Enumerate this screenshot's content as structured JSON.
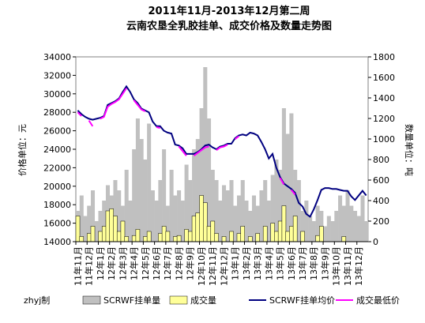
{
  "chart_data": {
    "type": "combo",
    "title": "2011年11月-2013年12月第二周",
    "subtitle": "云南农垦全乳胶挂单、成交价格及数量走势图",
    "y_label": "价格单位：元",
    "y2_label": "数量单位：吨",
    "credit": "zhyj制",
    "categories": [
      "11年11月",
      null,
      null,
      "11年12月",
      null,
      null,
      "12年1月",
      null,
      null,
      "12年2月",
      null,
      null,
      "12年3月",
      null,
      null,
      "12年4月",
      null,
      null,
      "12年5月",
      null,
      null,
      "12年6月",
      null,
      null,
      "12年7月",
      null,
      null,
      "12年8月",
      null,
      null,
      "12年9月",
      null,
      null,
      "12年10月",
      null,
      null,
      "12年11月",
      null,
      null,
      "12年12月",
      null,
      null,
      "13年1月",
      null,
      null,
      "13年2月",
      null,
      null,
      "13年3月",
      null,
      null,
      "13年4月",
      null,
      null,
      "13年5月",
      null,
      null,
      "13年6月",
      null,
      null,
      "13年7月",
      null,
      null,
      "13年8月",
      null,
      null,
      "13年9月",
      null,
      null,
      "13年10月",
      null,
      null,
      "13年11月",
      null,
      null,
      "13年12月",
      null,
      null
    ],
    "ylim": [
      14000,
      34000
    ],
    "yticks": [
      14000,
      16000,
      18000,
      20000,
      22000,
      24000,
      26000,
      28000,
      30000,
      32000,
      34000
    ],
    "y2lim": [
      0,
      1800
    ],
    "y2ticks": [
      0,
      200,
      400,
      600,
      800,
      1000,
      1200,
      1400,
      1600,
      1800
    ],
    "series": [
      {
        "name": "SCRWF挂单量",
        "kind": "bar",
        "axis": "y2",
        "color": "#c0c0c0",
        "values": [
          300,
          450,
          250,
          350,
          500,
          200,
          300,
          400,
          550,
          450,
          600,
          500,
          350,
          700,
          400,
          900,
          1200,
          1000,
          800,
          1150,
          500,
          400,
          600,
          900,
          350,
          700,
          450,
          500,
          400,
          750,
          600,
          900,
          1000,
          1300,
          1700,
          1200,
          700,
          600,
          400,
          550,
          500,
          600,
          350,
          450,
          600,
          400,
          300,
          450,
          350,
          500,
          600,
          400,
          650,
          800,
          700,
          1300,
          1050,
          1250,
          700,
          600,
          300,
          400,
          250,
          200,
          350,
          300,
          150,
          250,
          200,
          300,
          450,
          350,
          500,
          350,
          300,
          250,
          450,
          200
        ]
      },
      {
        "name": "成交量",
        "kind": "bar",
        "axis": "y2",
        "color": "#ffff99",
        "values": [
          250,
          50,
          0,
          80,
          150,
          0,
          100,
          150,
          300,
          320,
          250,
          100,
          200,
          50,
          0,
          60,
          120,
          0,
          50,
          100,
          0,
          0,
          80,
          150,
          100,
          0,
          50,
          60,
          0,
          120,
          100,
          250,
          280,
          450,
          380,
          150,
          200,
          80,
          0,
          50,
          0,
          100,
          0,
          80,
          150,
          0,
          50,
          0,
          80,
          0,
          150,
          0,
          180,
          100,
          200,
          350,
          100,
          150,
          250,
          0,
          100,
          0,
          0,
          0,
          60,
          150,
          0,
          0,
          0,
          0,
          0,
          50,
          0,
          0,
          0,
          0,
          0,
          0
        ]
      },
      {
        "name": "SCRWF挂单均价",
        "kind": "line",
        "color": "#000080",
        "values": [
          28200,
          27800,
          27500,
          27300,
          27200,
          27300,
          27400,
          27600,
          28800,
          29000,
          29200,
          29500,
          30200,
          30800,
          30200,
          29400,
          29000,
          28400,
          28200,
          28000,
          27000,
          26500,
          26500,
          26000,
          25800,
          25700,
          24500,
          24400,
          24100,
          23500,
          23500,
          23500,
          23700,
          24000,
          24400,
          24500,
          24200,
          24000,
          24300,
          24400,
          24600,
          24600,
          25200,
          25500,
          25600,
          25500,
          25800,
          25700,
          25500,
          24800,
          24000,
          23000,
          23500,
          22000,
          21000,
          20300,
          20000,
          19700,
          19300,
          18200,
          17800,
          17000,
          16700,
          17500,
          18500,
          19600,
          19800,
          19800,
          19700,
          19700,
          19600,
          19500,
          19500,
          18900,
          18500,
          19000,
          19500,
          19000
        ]
      },
      {
        "name": "成交最低价",
        "kind": "line",
        "color": "#ff00ff",
        "values": [
          28000,
          27600,
          null,
          27100,
          26500,
          null,
          27300,
          27500,
          28600,
          28900,
          29100,
          29400,
          30000,
          30600,
          null,
          29300,
          28800,
          28300,
          28100,
          null,
          null,
          26400,
          26300,
          null,
          25600,
          null,
          null,
          24300,
          23800,
          23300,
          null,
          23300,
          23600,
          23900,
          24200,
          24300,
          null,
          23900,
          24200,
          24300,
          24500,
          null,
          25100,
          25400,
          null,
          null,
          25700,
          null,
          25400,
          null,
          null,
          null,
          21500,
          null,
          20900,
          20200,
          null,
          19600,
          19100,
          null,
          17700,
          null,
          null,
          null,
          null,
          null,
          null,
          null,
          null,
          null,
          null,
          null,
          null,
          null,
          null,
          null,
          null,
          null
        ]
      }
    ]
  }
}
